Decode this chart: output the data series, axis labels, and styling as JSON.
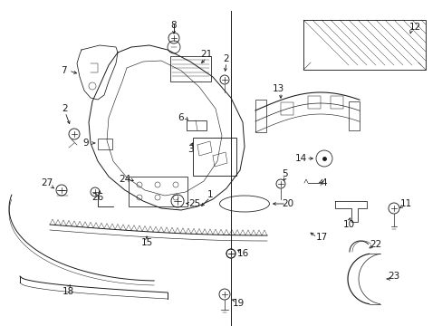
{
  "background_color": "#ffffff",
  "line_color": "#1a1a1a",
  "fig_width": 4.89,
  "fig_height": 3.6,
  "dpi": 100,
  "label_fontsize": 7.5,
  "lw": 0.7
}
